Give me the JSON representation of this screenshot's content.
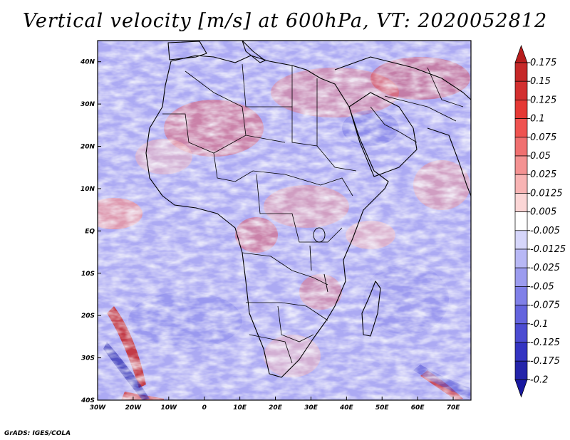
{
  "title": "Vertical velocity [m/s] at 600hPa, VT: 2020052812",
  "credit": "GrADS: IGES/COLA",
  "map": {
    "lon_range": [
      -30,
      75
    ],
    "lat_range": [
      -40,
      45
    ],
    "lat_labels": [
      {
        "lat": 40,
        "text": "40N"
      },
      {
        "lat": 30,
        "text": "30N"
      },
      {
        "lat": 20,
        "text": "20N"
      },
      {
        "lat": 10,
        "text": "10N"
      },
      {
        "lat": 0,
        "text": "EQ"
      },
      {
        "lat": -10,
        "text": "10S"
      },
      {
        "lat": -20,
        "text": "20S"
      },
      {
        "lat": -30,
        "text": "30S"
      },
      {
        "lat": -40,
        "text": "40S"
      }
    ],
    "lon_labels": [
      {
        "lon": -30,
        "text": "30W"
      },
      {
        "lon": -20,
        "text": "20W"
      },
      {
        "lon": -10,
        "text": "10W"
      },
      {
        "lon": 0,
        "text": "0"
      },
      {
        "lon": 10,
        "text": "10E"
      },
      {
        "lon": 20,
        "text": "20E"
      },
      {
        "lon": 30,
        "text": "30E"
      },
      {
        "lon": 40,
        "text": "40E"
      },
      {
        "lon": 50,
        "text": "50E"
      },
      {
        "lon": 60,
        "text": "60E"
      },
      {
        "lon": 70,
        "text": "70E"
      }
    ]
  },
  "colorbar": {
    "levels": [
      "0.175",
      "0.15",
      "0.125",
      "0.1",
      "0.075",
      "0.05",
      "0.025",
      "0.0125",
      "0.005",
      "-0.005",
      "-0.0125",
      "-0.025",
      "-0.05",
      "-0.075",
      "-0.1",
      "-0.125",
      "-0.175",
      "-0.2"
    ],
    "colors": [
      "#b71c1c",
      "#c62828",
      "#d32f2f",
      "#e53935",
      "#ef5350",
      "#f07070",
      "#f49292",
      "#f8b4b4",
      "#fbd6d6",
      "#ffffff",
      "#d6d6fb",
      "#b8b8f5",
      "#9c9cef",
      "#8080e8",
      "#6464de",
      "#4c4cd2",
      "#3434c2",
      "#2424aa",
      "#1818a0"
    ]
  }
}
